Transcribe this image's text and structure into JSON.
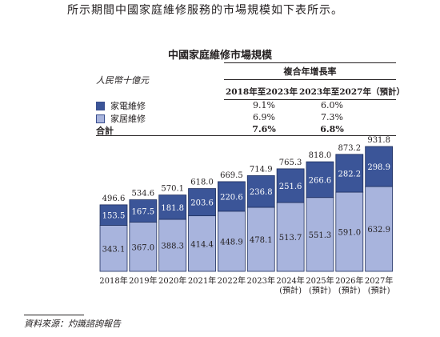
{
  "intro_text": "所示期間中國家庭維修服務的市場規模如下表所示。",
  "chart_title": "中國家庭維修市場規模",
  "unit_label": "人民幣十億元",
  "cagr_table": {
    "header": "複合年增長率",
    "columns": [
      "2018年至2023年",
      "2023年至2027年（預計）"
    ],
    "rows": [
      {
        "label": "家電維修",
        "values": [
          "9.1%",
          "6.0%"
        ],
        "bold": false
      },
      {
        "label": "家居維修",
        "values": [
          "6.9%",
          "7.3%"
        ],
        "bold": false
      },
      {
        "label": "合計",
        "values": [
          "7.6%",
          "6.8%"
        ],
        "bold": true
      }
    ]
  },
  "colors": {
    "appliance": "#3b5598",
    "home": "#a8b4dd",
    "stroke": "#1f2f5e"
  },
  "chart_data": {
    "type": "bar",
    "stacked": true,
    "categories": [
      "2018年",
      "2019年",
      "2020年",
      "2021年",
      "2022年",
      "2023年",
      "2024年\n(預計)",
      "2025年\n(預計)",
      "2026年\n(預計)",
      "2027年\n(預計)"
    ],
    "series": [
      {
        "name": "家居維修",
        "values": [
          343.1,
          367.0,
          388.3,
          414.4,
          448.9,
          478.1,
          513.7,
          551.3,
          591.0,
          632.9
        ]
      },
      {
        "name": "家電維修",
        "values": [
          153.5,
          167.5,
          181.8,
          203.6,
          220.6,
          236.8,
          251.6,
          266.6,
          282.2,
          298.9
        ]
      }
    ],
    "totals": [
      496.6,
      534.6,
      570.1,
      618.0,
      669.5,
      714.9,
      765.3,
      818.0,
      873.2,
      931.8
    ],
    "ylim": [
      0,
      931.8
    ]
  },
  "source": "資料來源：灼識諮詢報告"
}
